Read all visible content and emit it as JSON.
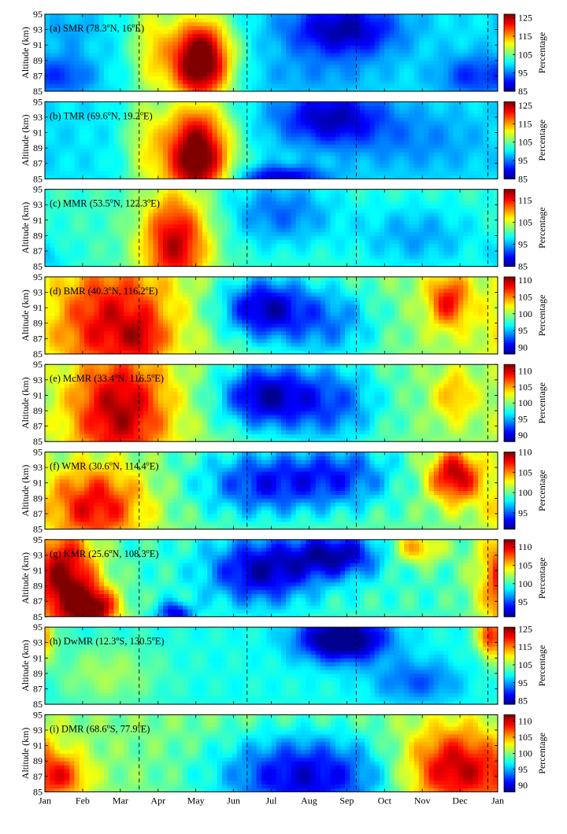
{
  "figure": {
    "x_months": [
      "Jan",
      "Feb",
      "Mar",
      "Apr",
      "May",
      "Jun",
      "Jul",
      "Aug",
      "Sep",
      "Oct",
      "Nov",
      "Dec",
      "Jan"
    ],
    "y_ticks": [
      85,
      87,
      89,
      91,
      93,
      95
    ],
    "ylabel": "Altitude (km)",
    "colorbar_label": "Percentage",
    "colormap": [
      "#00008f",
      "#0000ff",
      "#0080ff",
      "#00ffff",
      "#80ff80",
      "#ffff00",
      "#ff8000",
      "#ff0000",
      "#800000"
    ]
  },
  "chart_data": [
    {
      "type": "heatmap",
      "title": "(a) SMR (78.3°N, 16°E)",
      "label": "(a) SMR (78.3",
      "lat": "N, 16",
      "lon": "E)",
      "xlabel": "",
      "ylabel": "Altitude (km)",
      "ylim": [
        85,
        95
      ],
      "colorbar": {
        "label": "Percentage",
        "ticks": [
          85,
          95,
          105,
          115,
          125
        ],
        "range": [
          85,
          127
        ]
      },
      "dashed_lines_days": [
        76,
        163,
        251,
        357
      ],
      "blobs": [
        {
          "x": 125,
          "y": 89,
          "sx": 18,
          "sy": 4,
          "v": 32
        },
        {
          "x": 85,
          "y": 91,
          "sx": 12,
          "sy": 6,
          "v": 10
        },
        {
          "x": 240,
          "y": 93,
          "sx": 32,
          "sy": 2.5,
          "v": -14
        },
        {
          "x": 215,
          "y": 87,
          "sx": 40,
          "sy": 2,
          "v": -3
        },
        {
          "x": 345,
          "y": 87,
          "sx": 20,
          "sy": 2,
          "v": -8
        },
        {
          "x": 20,
          "y": 87,
          "sx": 15,
          "sy": 2,
          "v": -6
        },
        {
          "x": 20,
          "y": 93,
          "sx": 15,
          "sy": 2,
          "v": -3
        }
      ]
    },
    {
      "type": "heatmap",
      "title": "(b) TMR (69.6°N, 19.2°E)",
      "label": "(b) TMR (69.6",
      "lat": "N, 19.2",
      "lon": "E)",
      "xlabel": "",
      "ylabel": "Altitude (km)",
      "ylim": [
        85,
        95
      ],
      "colorbar": {
        "label": "Percentage",
        "ticks": [
          85,
          95,
          105,
          115,
          125
        ],
        "range": [
          85,
          127
        ]
      },
      "dashed_lines_days": [
        76,
        163,
        251,
        357
      ],
      "blobs": [
        {
          "x": 122,
          "y": 88,
          "sx": 20,
          "sy": 5,
          "v": 30
        },
        {
          "x": 80,
          "y": 90,
          "sx": 12,
          "sy": 6,
          "v": 8
        },
        {
          "x": 230,
          "y": 93,
          "sx": 30,
          "sy": 2.5,
          "v": -13
        },
        {
          "x": 190,
          "y": 85.3,
          "sx": 25,
          "sy": 1,
          "v": -12
        },
        {
          "x": 300,
          "y": 90,
          "sx": 40,
          "sy": 3,
          "v": -4
        }
      ]
    },
    {
      "type": "heatmap",
      "title": "(c) MMR (53.5°N, 122.3°E)",
      "label": "(c) MMR (53.5",
      "lat": "N, 122.3",
      "lon": "E)",
      "xlabel": "",
      "ylabel": "Altitude (km)",
      "ylim": [
        85,
        95
      ],
      "colorbar": {
        "label": "Percentage",
        "ticks": [
          85,
          95,
          105,
          115
        ],
        "range": [
          85,
          120
        ]
      },
      "dashed_lines_days": [
        76,
        163,
        251,
        357
      ],
      "blobs": [
        {
          "x": 105,
          "y": 88,
          "sx": 20,
          "sy": 5,
          "v": 18
        },
        {
          "x": 5,
          "y": 86,
          "sx": 10,
          "sy": 1.5,
          "v": -3
        },
        {
          "x": 190,
          "y": 92,
          "sx": 30,
          "sy": 3,
          "v": -7
        },
        {
          "x": 300,
          "y": 89,
          "sx": 35,
          "sy": 3,
          "v": -5
        }
      ]
    },
    {
      "type": "heatmap",
      "title": "(d) BMR (40.3°N, 116.2°E)",
      "label": "(d) BMR (40.3",
      "lat": "N, 116.2",
      "lon": "E)",
      "xlabel": "",
      "ylabel": "Altitude (km)",
      "ylim": [
        85,
        95
      ],
      "colorbar": {
        "label": "Percentage",
        "ticks": [
          90,
          95,
          100,
          105,
          110
        ],
        "range": [
          88,
          111
        ]
      },
      "dashed_lines_days": [
        76,
        163,
        251,
        357
      ],
      "blobs": [
        {
          "x": 55,
          "y": 89,
          "sx": 35,
          "sy": 6,
          "v": 9
        },
        {
          "x": 80,
          "y": 87,
          "sx": 10,
          "sy": 2,
          "v": 3
        },
        {
          "x": 175,
          "y": 91,
          "sx": 25,
          "sy": 3,
          "v": -10
        },
        {
          "x": 230,
          "y": 89,
          "sx": 30,
          "sy": 4,
          "v": -6
        },
        {
          "x": 325,
          "y": 92,
          "sx": 12,
          "sy": 2.5,
          "v": 8
        }
      ]
    },
    {
      "type": "heatmap",
      "title": "(e) McMR (33.4°N, 116.5°E)",
      "label": "(e) McMR (33.4",
      "lat": "N, 116.5",
      "lon": "E)",
      "xlabel": "",
      "ylabel": "Altitude (km)",
      "ylim": [
        85,
        95
      ],
      "colorbar": {
        "label": "Percentage",
        "ticks": [
          90,
          95,
          100,
          105,
          110
        ],
        "range": [
          88,
          112
        ]
      },
      "dashed_lines_days": [
        76,
        163,
        251,
        357
      ],
      "blobs": [
        {
          "x": 60,
          "y": 89,
          "sx": 30,
          "sy": 6,
          "v": 11
        },
        {
          "x": 175,
          "y": 91,
          "sx": 25,
          "sy": 3,
          "v": -10
        },
        {
          "x": 230,
          "y": 90,
          "sx": 30,
          "sy": 4,
          "v": -7
        },
        {
          "x": 330,
          "y": 91,
          "sx": 12,
          "sy": 2.5,
          "v": 5
        }
      ]
    },
    {
      "type": "heatmap",
      "title": "(f) WMR (30.6°N, 114.4°E)",
      "label": "(f) WMR (30.6",
      "lat": "N, 114.4",
      "lon": "E)",
      "xlabel": "",
      "ylabel": "Altitude (km)",
      "ylim": [
        85,
        95
      ],
      "colorbar": {
        "label": "Percentage",
        "ticks": [
          95,
          100,
          105,
          110
        ],
        "range": [
          91,
          110
        ]
      },
      "dashed_lines_days": [
        76,
        163,
        251,
        357
      ],
      "blobs": [
        {
          "x": 40,
          "y": 88,
          "sx": 30,
          "sy": 4,
          "v": 8
        },
        {
          "x": 175,
          "y": 91,
          "sx": 35,
          "sy": 3,
          "v": -6
        },
        {
          "x": 240,
          "y": 92,
          "sx": 30,
          "sy": 3,
          "v": -5
        },
        {
          "x": 330,
          "y": 92,
          "sx": 15,
          "sy": 2.5,
          "v": 9
        }
      ]
    },
    {
      "type": "heatmap",
      "title": "(g) KMR (25.6°N, 108.3°E)",
      "label": "(g) KMR (25.6",
      "lat": "N, 108.3",
      "lon": "E)",
      "xlabel": "",
      "ylabel": "Altitude (km)",
      "ylim": [
        85,
        95
      ],
      "colorbar": {
        "label": "Percentage",
        "ticks": [
          95,
          100,
          105,
          110
        ],
        "range": [
          91,
          112
        ]
      },
      "dashed_lines_days": [
        76,
        163,
        251,
        357
      ],
      "blobs": [
        {
          "x": 15,
          "y": 90,
          "sx": 20,
          "sy": 5,
          "v": 12
        },
        {
          "x": 40,
          "y": 86,
          "sx": 15,
          "sy": 2,
          "v": 10
        },
        {
          "x": 175,
          "y": 91,
          "sx": 30,
          "sy": 3,
          "v": -8
        },
        {
          "x": 235,
          "y": 93,
          "sx": 25,
          "sy": 2,
          "v": -8
        },
        {
          "x": 105,
          "y": 85.5,
          "sx": 10,
          "sy": 1,
          "v": -7
        },
        {
          "x": 300,
          "y": 94,
          "sx": 15,
          "sy": 1.5,
          "v": 6
        }
      ]
    },
    {
      "type": "heatmap",
      "title": "(h) DwMR (12.3°S, 130.5°E)",
      "label": "(h) DwMR (12.3",
      "lat": "S, 130.5",
      "lon": "E)",
      "xlabel": "",
      "ylabel": "Altitude (km)",
      "ylim": [
        85,
        95
      ],
      "colorbar": {
        "label": "Percentage",
        "ticks": [
          85,
          95,
          105,
          115,
          125
        ],
        "range": [
          83,
          126
        ]
      },
      "dashed_lines_days": [
        76,
        163,
        251,
        357
      ],
      "blobs": [
        {
          "x": 240,
          "y": 93.5,
          "sx": 25,
          "sy": 2,
          "v": -22
        },
        {
          "x": 50,
          "y": 89,
          "sx": 30,
          "sy": 3,
          "v": 6
        },
        {
          "x": 360,
          "y": 94,
          "sx": 8,
          "sy": 2,
          "v": 20
        },
        {
          "x": 300,
          "y": 88,
          "sx": 25,
          "sy": 2,
          "v": -8
        }
      ]
    },
    {
      "type": "heatmap",
      "title": "(i) DMR (68.6°S, 77.9°E)",
      "label": "(i) DMR (68.6",
      "lat": "S, 77.9",
      "lon": "E)",
      "xlabel": "",
      "ylabel": "Altitude (km)",
      "ylim": [
        85,
        95
      ],
      "colorbar": {
        "label": "Percentage",
        "ticks": [
          90,
          95,
          100,
          105,
          110
        ],
        "range": [
          88,
          112
        ]
      },
      "dashed_lines_days": [
        76,
        163,
        251,
        357
      ],
      "blobs": [
        {
          "x": 15,
          "y": 87,
          "sx": 15,
          "sy": 2,
          "v": 6
        },
        {
          "x": 210,
          "y": 87,
          "sx": 50,
          "sy": 4,
          "v": -10
        },
        {
          "x": 330,
          "y": 88,
          "sx": 30,
          "sy": 4,
          "v": 11
        }
      ]
    }
  ]
}
